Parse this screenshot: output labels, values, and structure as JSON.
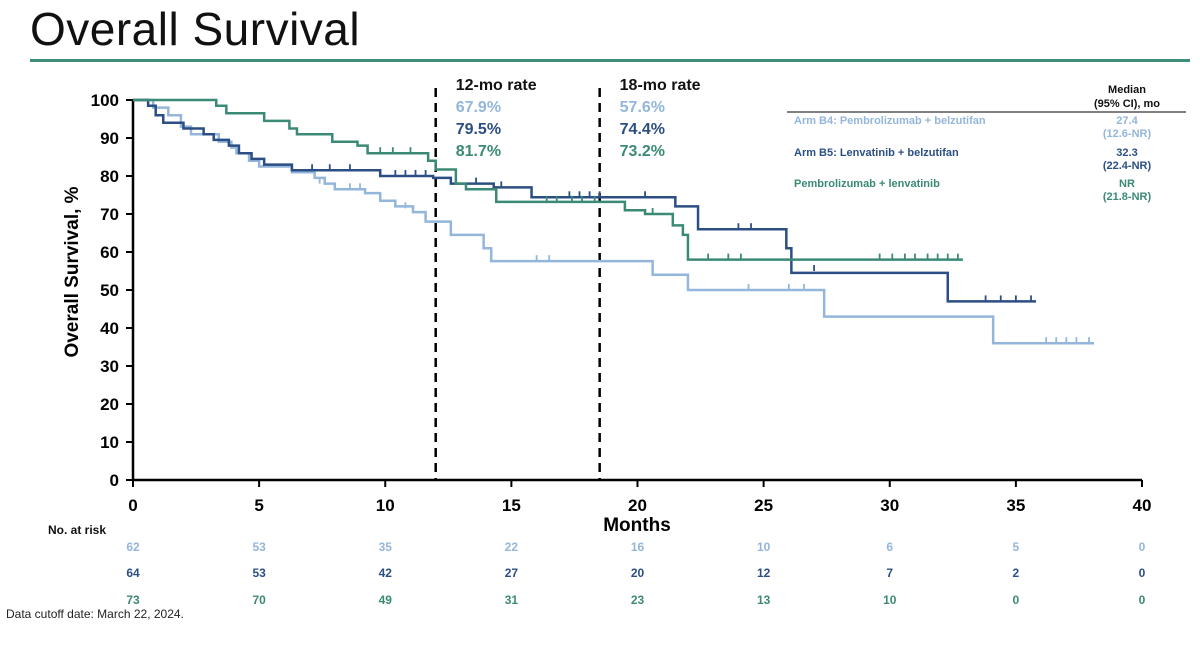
{
  "title": "Overall Survival",
  "footnote": "Data cutoff date: March 22, 2024.",
  "colors": {
    "b4": "#94b6db",
    "b5": "#2b4f84",
    "pl": "#3b8a75",
    "axis": "#000000",
    "rule": "#3d8f7b"
  },
  "chart_data": {
    "type": "line",
    "subtype": "kaplan-meier",
    "xlabel": "Months",
    "ylabel": "Overall Survival, %",
    "xlim": [
      0,
      40
    ],
    "ylim": [
      0,
      100
    ],
    "xticks": [
      0,
      5,
      10,
      15,
      20,
      25,
      30,
      35,
      40
    ],
    "yticks": [
      0,
      10,
      20,
      30,
      40,
      50,
      60,
      70,
      80,
      90,
      100
    ],
    "reference_lines": [
      {
        "x": 12,
        "label": "12-mo rate",
        "rates": [
          "67.9%",
          "79.5%",
          "81.7%"
        ]
      },
      {
        "x": 18.5,
        "label": "18-mo rate",
        "rates": [
          "57.6%",
          "74.4%",
          "73.2%"
        ]
      }
    ],
    "legend_header": [
      "Median",
      "(95% CI), mo"
    ],
    "series": [
      {
        "key": "b4",
        "name": "Arm B4: Pembrolizumab + belzutifan",
        "median": "27.4",
        "ci": "(12.6-NR)",
        "steps": [
          [
            0,
            100
          ],
          [
            0.8,
            98
          ],
          [
            1.4,
            96
          ],
          [
            1.9,
            93
          ],
          [
            2.3,
            91
          ],
          [
            3.4,
            89
          ],
          [
            3.9,
            87.5
          ],
          [
            4.1,
            86
          ],
          [
            4.6,
            84
          ],
          [
            5.0,
            82.5
          ],
          [
            6.3,
            81
          ],
          [
            7.2,
            79.5
          ],
          [
            7.6,
            78
          ],
          [
            8.0,
            76.5
          ],
          [
            8.8,
            76.5
          ],
          [
            9.2,
            75.5
          ],
          [
            9.8,
            73.5
          ],
          [
            10.4,
            72
          ],
          [
            11.1,
            70.5
          ],
          [
            11.6,
            68
          ],
          [
            12.6,
            64.5
          ],
          [
            13.9,
            61
          ],
          [
            14.2,
            57.6
          ],
          [
            20.6,
            54
          ],
          [
            22.0,
            50
          ],
          [
            27.4,
            43
          ],
          [
            34.1,
            36
          ],
          [
            38.1,
            36
          ]
        ],
        "censors": [
          [
            7.4,
            78
          ],
          [
            8.6,
            76.5
          ],
          [
            9.0,
            76.5
          ],
          [
            10.8,
            71.5
          ],
          [
            16.0,
            57.6
          ],
          [
            16.5,
            57.6
          ],
          [
            24.4,
            50
          ],
          [
            26.0,
            50
          ],
          [
            26.6,
            50
          ],
          [
            36.2,
            36
          ],
          [
            36.6,
            36
          ],
          [
            37.0,
            36
          ],
          [
            37.4,
            36
          ],
          [
            37.9,
            36
          ]
        ]
      },
      {
        "key": "b5",
        "name": "Arm B5: Lenvatinib + belzutifan",
        "median": "32.3",
        "ci": "(22.4-NR)",
        "steps": [
          [
            0,
            100
          ],
          [
            0.6,
            98.5
          ],
          [
            0.9,
            96
          ],
          [
            1.2,
            94
          ],
          [
            2.0,
            92.5
          ],
          [
            2.8,
            91
          ],
          [
            3.2,
            89.5
          ],
          [
            3.8,
            88
          ],
          [
            4.2,
            86
          ],
          [
            4.7,
            84.5
          ],
          [
            5.2,
            83
          ],
          [
            6.3,
            81.5
          ],
          [
            9.8,
            80
          ],
          [
            11.9,
            79.5
          ],
          [
            12.6,
            78
          ],
          [
            14.3,
            77
          ],
          [
            15.8,
            74.4
          ],
          [
            21.5,
            72
          ],
          [
            22.4,
            66
          ],
          [
            25.9,
            61
          ],
          [
            26.1,
            54.5
          ],
          [
            32.3,
            47
          ],
          [
            35.8,
            47
          ]
        ],
        "censors": [
          [
            7.1,
            81.5
          ],
          [
            7.8,
            81.5
          ],
          [
            8.6,
            81.5
          ],
          [
            10.4,
            80
          ],
          [
            10.8,
            80
          ],
          [
            11.2,
            80
          ],
          [
            11.6,
            80
          ],
          [
            13.6,
            78
          ],
          [
            14.6,
            77
          ],
          [
            17.3,
            74.4
          ],
          [
            17.7,
            74.4
          ],
          [
            18.1,
            74.4
          ],
          [
            18.5,
            74.4
          ],
          [
            20.3,
            74.4
          ],
          [
            24.0,
            66
          ],
          [
            24.5,
            66
          ],
          [
            27.0,
            55
          ],
          [
            33.8,
            47
          ],
          [
            34.4,
            47
          ],
          [
            35.0,
            47
          ],
          [
            35.6,
            47
          ]
        ]
      },
      {
        "key": "pl",
        "name": "Pembrolizumab + lenvatinib",
        "median": "NR",
        "ci": "(21.8-NR)",
        "steps": [
          [
            0,
            100
          ],
          [
            3.3,
            98.5
          ],
          [
            3.7,
            96.5
          ],
          [
            5.2,
            94.5
          ],
          [
            6.2,
            92.5
          ],
          [
            6.5,
            91
          ],
          [
            7.9,
            89
          ],
          [
            8.9,
            88
          ],
          [
            9.3,
            86
          ],
          [
            10.7,
            86
          ],
          [
            11.7,
            84
          ],
          [
            12.0,
            81.7
          ],
          [
            12.8,
            78
          ],
          [
            13.2,
            76.5
          ],
          [
            14.4,
            73.2
          ],
          [
            19.5,
            71
          ],
          [
            20.3,
            70
          ],
          [
            21.4,
            67
          ],
          [
            21.8,
            64.5
          ],
          [
            22.0,
            58
          ],
          [
            32.9,
            58
          ]
        ],
        "censors": [
          [
            9.8,
            86
          ],
          [
            10.3,
            86
          ],
          [
            11.0,
            86
          ],
          [
            16.4,
            73.2
          ],
          [
            16.8,
            73.2
          ],
          [
            17.4,
            73.2
          ],
          [
            17.8,
            73.2
          ],
          [
            18.3,
            73.2
          ],
          [
            20.6,
            70
          ],
          [
            22.8,
            58
          ],
          [
            23.6,
            58
          ],
          [
            24.1,
            58
          ],
          [
            29.6,
            58
          ],
          [
            30.1,
            58
          ],
          [
            30.6,
            58
          ],
          [
            31.0,
            58
          ],
          [
            31.5,
            58
          ],
          [
            31.9,
            58
          ],
          [
            32.3,
            58
          ],
          [
            32.7,
            58
          ]
        ]
      }
    ],
    "risk_table": {
      "label": "No. at risk",
      "times": [
        0,
        5,
        10,
        15,
        20,
        25,
        30,
        35,
        40
      ],
      "rows": [
        {
          "key": "b4",
          "values": [
            "62",
            "53",
            "35",
            "22",
            "16",
            "10",
            "6",
            "5",
            "0"
          ]
        },
        {
          "key": "b5",
          "values": [
            "64",
            "53",
            "42",
            "27",
            "20",
            "12",
            "7",
            "2",
            "0"
          ]
        },
        {
          "key": "pl",
          "values": [
            "73",
            "70",
            "49",
            "31",
            "23",
            "13",
            "10",
            "0",
            "0"
          ]
        }
      ]
    }
  }
}
